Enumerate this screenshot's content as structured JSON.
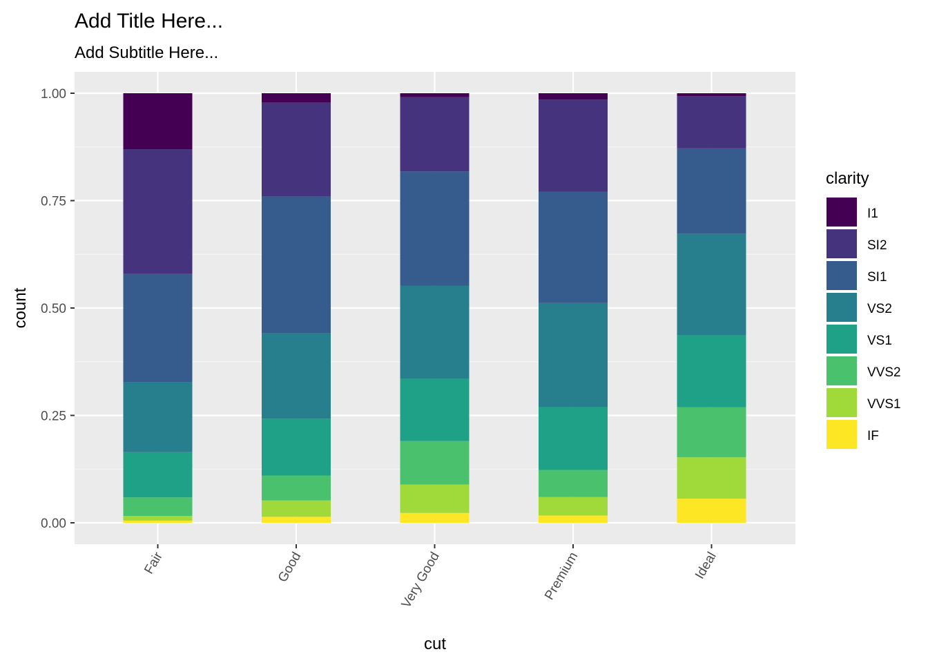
{
  "chart_data": {
    "type": "bar",
    "stacked": true,
    "position": "fill",
    "title": "Add Title Here...",
    "subtitle": "Add Subtitle Here...",
    "xlabel": "cut",
    "ylabel": "count",
    "ylim": [
      0,
      1
    ],
    "grid": true,
    "legend_title": "clarity",
    "legend_position": "right",
    "x_tick_rotation": -60,
    "y_ticks": [
      "0.00",
      "0.25",
      "0.50",
      "0.75",
      "1.00"
    ],
    "y_tick_values": [
      0,
      0.25,
      0.5,
      0.75,
      1
    ],
    "categories": [
      "Fair",
      "Good",
      "Very Good",
      "Premium",
      "Ideal"
    ],
    "series": [
      {
        "name": "I1",
        "color": "#440154",
        "values": [
          0.13,
          0.022,
          0.009,
          0.015,
          0.007
        ]
      },
      {
        "name": "SI2",
        "color": "#46337E",
        "values": [
          0.29,
          0.218,
          0.173,
          0.215,
          0.121
        ]
      },
      {
        "name": "SI1",
        "color": "#365C8D",
        "values": [
          0.252,
          0.318,
          0.266,
          0.259,
          0.198
        ]
      },
      {
        "name": "VS2",
        "color": "#277F8E",
        "values": [
          0.162,
          0.199,
          0.216,
          0.243,
          0.236
        ]
      },
      {
        "name": "VS1",
        "color": "#1FA187",
        "values": [
          0.105,
          0.132,
          0.145,
          0.146,
          0.167
        ]
      },
      {
        "name": "VVS2",
        "color": "#4AC16D",
        "values": [
          0.043,
          0.058,
          0.101,
          0.063,
          0.116
        ]
      },
      {
        "name": "VVS1",
        "color": "#9FDA3A",
        "values": [
          0.011,
          0.038,
          0.066,
          0.043,
          0.096
        ]
      },
      {
        "name": "IF",
        "color": "#FDE725",
        "values": [
          0.005,
          0.014,
          0.023,
          0.017,
          0.056
        ]
      }
    ],
    "colors": {
      "panel_background": "#EBEBEB",
      "grid_major": "#FFFFFF",
      "grid_minor": "#F5F5F5",
      "tick": "#333333"
    }
  }
}
